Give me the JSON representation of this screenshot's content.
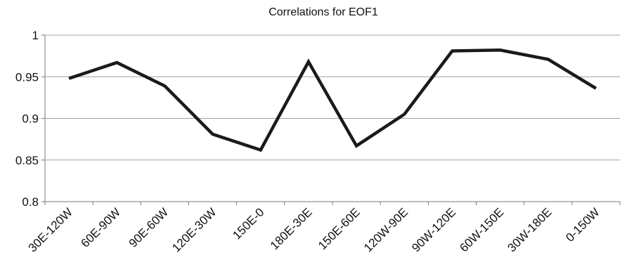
{
  "chart_data": {
    "type": "line",
    "title": "Correlations for EOF1",
    "xlabel": "",
    "ylabel": "",
    "categories": [
      "30E-120W",
      "60E-90W",
      "90E-60W",
      "120E-30W",
      "150E-0",
      "180E-30E",
      "150E-60E",
      "120W-90E",
      "90W-120E",
      "60W-150E",
      "30W-180E",
      "0-150W"
    ],
    "series": [
      {
        "values": [
          0.948,
          0.967,
          0.939,
          0.881,
          0.862,
          0.968,
          0.867,
          0.905,
          0.981,
          0.982,
          0.971,
          0.936
        ]
      }
    ],
    "ylim": [
      0.8,
      1.0
    ],
    "yticks": [
      0.8,
      0.85,
      0.9,
      0.95,
      1.0
    ],
    "ytick_labels": [
      "0.8",
      "0.85",
      "0.9",
      "0.95",
      "1"
    ],
    "grid": true,
    "legend": "none",
    "colors": {
      "line": "#1a1a1a",
      "grid": "#a0a0a0",
      "axis": "#7a7a7a",
      "text": "#111111"
    }
  }
}
